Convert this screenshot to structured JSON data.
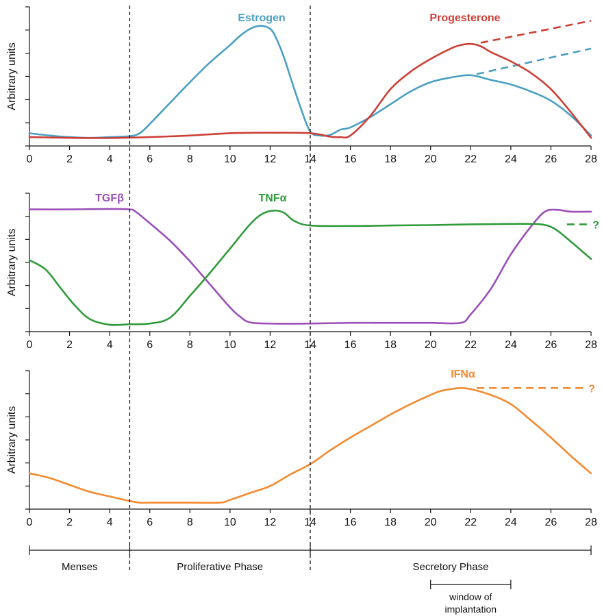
{
  "colors": {
    "estrogen": "#4a9fc2",
    "progesterone": "#cc3f36",
    "tgfb": "#9b4fb8",
    "tnfa": "#2f9a3a",
    "ifna": "#f28a30",
    "axis": "#111111"
  },
  "chart_data": [
    {
      "type": "line",
      "ylabel": "Arbitrary units",
      "xlim": [
        0,
        28
      ],
      "ylim": [
        0,
        6
      ],
      "xticks": [
        0,
        2,
        4,
        6,
        8,
        10,
        12,
        14,
        16,
        18,
        20,
        22,
        24,
        26,
        28
      ],
      "xtick_labels": [
        "0",
        "2",
        "4",
        "6",
        "8",
        "10",
        "12",
        "14",
        "16",
        "18",
        "20",
        "22",
        "24",
        "26",
        "28"
      ],
      "grid": false,
      "series": [
        {
          "name": "Estrogen",
          "color_key": "estrogen",
          "x": [
            0,
            1,
            2,
            3,
            4,
            5,
            5.5,
            6,
            7,
            8,
            9,
            10,
            10.5,
            11,
            11.5,
            12,
            12.3,
            12.7,
            13,
            13.5,
            14,
            14.5,
            15,
            15.5,
            16,
            17,
            18,
            19,
            20,
            21,
            22,
            23,
            24,
            25,
            26,
            27,
            28
          ],
          "y": [
            0.55,
            0.45,
            0.38,
            0.35,
            0.38,
            0.42,
            0.55,
            0.95,
            1.85,
            2.75,
            3.6,
            4.35,
            4.75,
            5.05,
            5.18,
            5.05,
            4.65,
            3.8,
            3.0,
            1.7,
            0.62,
            0.45,
            0.48,
            0.7,
            0.8,
            1.25,
            1.8,
            2.35,
            2.75,
            2.95,
            3.05,
            2.85,
            2.65,
            2.35,
            1.95,
            1.3,
            0.45
          ]
        },
        {
          "name": "Progesterone",
          "color_key": "progesterone",
          "x": [
            0,
            2,
            4,
            5,
            6,
            8,
            10,
            12,
            14,
            15,
            15.5,
            16,
            17,
            18,
            19,
            20,
            21,
            21.5,
            22,
            22.5,
            23,
            24,
            25,
            26,
            27,
            28
          ],
          "y": [
            0.38,
            0.35,
            0.34,
            0.36,
            0.38,
            0.45,
            0.55,
            0.57,
            0.55,
            0.4,
            0.38,
            0.45,
            1.3,
            2.45,
            3.2,
            3.75,
            4.2,
            4.35,
            4.4,
            4.3,
            4.05,
            3.65,
            3.15,
            2.45,
            1.45,
            0.35
          ]
        }
      ],
      "projections": [
        {
          "color_key": "progesterone",
          "x": [
            22.5,
            28
          ],
          "y": [
            4.45,
            5.4
          ]
        },
        {
          "color_key": "estrogen",
          "x": [
            22.3,
            28
          ],
          "y": [
            3.1,
            4.2
          ]
        }
      ]
    },
    {
      "type": "line",
      "ylabel": "Arbitrary units",
      "xlim": [
        0,
        28
      ],
      "ylim": [
        0,
        6
      ],
      "xticks": [
        0,
        2,
        4,
        6,
        8,
        10,
        12,
        14,
        16,
        18,
        20,
        22,
        24,
        26,
        28
      ],
      "xtick_labels": [
        "0",
        "2",
        "4",
        "6",
        "8",
        "10",
        "12",
        "14",
        "16",
        "18",
        "20",
        "22",
        "24",
        "26",
        "28"
      ],
      "grid": false,
      "series": [
        {
          "name": "TGFβ",
          "color_key": "tgfb",
          "x": [
            0,
            2,
            4,
            5,
            5.3,
            6,
            7,
            8,
            9,
            10,
            10.5,
            11,
            12,
            14,
            16,
            18,
            20,
            21.5,
            22,
            23,
            24,
            25,
            25.7,
            26.3,
            27,
            28
          ],
          "y": [
            5.3,
            5.3,
            5.32,
            5.3,
            5.2,
            4.7,
            3.95,
            3.05,
            2.05,
            1.05,
            0.65,
            0.4,
            0.35,
            0.35,
            0.38,
            0.38,
            0.38,
            0.38,
            0.75,
            1.85,
            3.35,
            4.55,
            5.2,
            5.28,
            5.2,
            5.2
          ]
        },
        {
          "name": "TNFα",
          "color_key": "tnfa",
          "x": [
            0,
            0.8,
            1.5,
            2.2,
            3,
            4,
            5,
            6,
            7,
            8,
            9,
            10,
            11,
            11.6,
            12.2,
            12.7,
            13.2,
            14,
            16,
            18,
            20,
            22,
            24,
            25.5,
            26.2,
            27,
            28
          ],
          "y": [
            3.1,
            2.7,
            1.95,
            1.2,
            0.55,
            0.3,
            0.32,
            0.35,
            0.6,
            1.55,
            2.55,
            3.6,
            4.65,
            5.1,
            5.25,
            5.15,
            4.8,
            4.6,
            4.58,
            4.6,
            4.62,
            4.65,
            4.67,
            4.65,
            4.45,
            3.9,
            3.15
          ]
        }
      ],
      "projections": [
        {
          "color_key": "tnfa",
          "x": [
            26.8,
            27.8
          ],
          "y": [
            4.65,
            4.65
          ],
          "label": "?"
        }
      ]
    },
    {
      "type": "line",
      "ylabel": "Arbitrary units",
      "xlim": [
        0,
        28
      ],
      "ylim": [
        0,
        6
      ],
      "xticks": [
        0,
        2,
        4,
        6,
        8,
        10,
        12,
        14,
        16,
        18,
        20,
        22,
        24,
        26,
        28
      ],
      "xtick_labels": [
        "0",
        "2",
        "4",
        "6",
        "8",
        "10",
        "12",
        "14",
        "16",
        "18",
        "20",
        "22",
        "24",
        "26",
        "28"
      ],
      "grid": false,
      "series": [
        {
          "name": "IFNα",
          "color_key": "ifna",
          "x": [
            0,
            1,
            2,
            3,
            4,
            5,
            5.5,
            6,
            8,
            9.5,
            10,
            11,
            12,
            13,
            14,
            15,
            16,
            17,
            18,
            19,
            20,
            20.5,
            21,
            21.5,
            22,
            23,
            24,
            25,
            26,
            27,
            28
          ],
          "y": [
            1.55,
            1.35,
            1.05,
            0.75,
            0.55,
            0.35,
            0.28,
            0.28,
            0.28,
            0.28,
            0.4,
            0.7,
            1.0,
            1.5,
            1.95,
            2.55,
            3.1,
            3.6,
            4.1,
            4.55,
            4.95,
            5.12,
            5.2,
            5.25,
            5.2,
            4.95,
            4.55,
            3.85,
            3.1,
            2.3,
            1.55
          ]
        }
      ],
      "projections": [
        {
          "color_key": "ifna",
          "x": [
            22.3,
            27.6
          ],
          "y": [
            5.25,
            5.25
          ],
          "label": "?"
        }
      ]
    }
  ],
  "phases": [
    {
      "label": "Menses",
      "start": 0,
      "end": 5
    },
    {
      "label": "Proliferative Phase",
      "start": 5,
      "end": 14
    },
    {
      "label": "Secretory Phase",
      "start": 14,
      "end": 28
    }
  ],
  "phase_boundaries": [
    5,
    14
  ],
  "window_of_implantation": {
    "label_line1": "window of",
    "label_line2": "implantation",
    "start": 20,
    "end": 24
  }
}
